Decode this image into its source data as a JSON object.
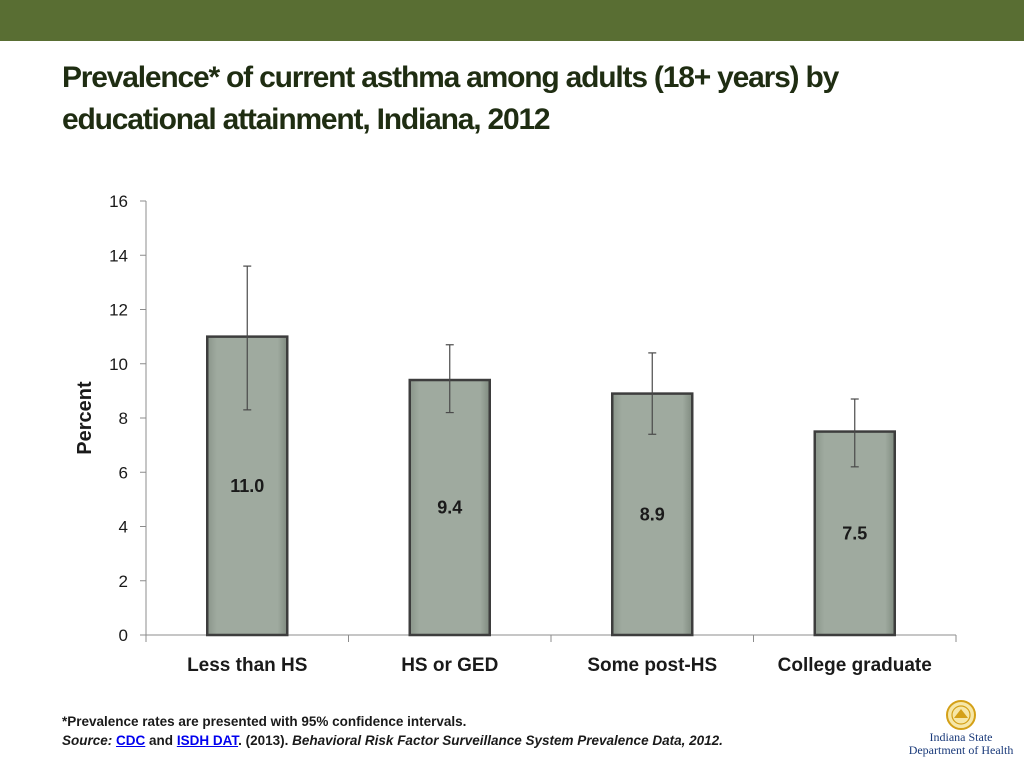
{
  "title": "Prevalence* of current asthma among adults (18+ years) by educational attainment, Indiana, 2012",
  "colors": {
    "top_band": "#596e33",
    "title": "#1f2d12",
    "bar_fill": "#9faa9f",
    "bar_edge": "#3d3d3d",
    "text": "#1a1a1a",
    "axis": "#8c8c8c",
    "logo_seal": "#d4a017",
    "logo_text": "#1a3a7a"
  },
  "chart_data": {
    "type": "bar",
    "categories": [
      "Less than HS",
      "HS or GED",
      "Some post-HS",
      "College graduate"
    ],
    "values": [
      11.0,
      9.4,
      8.9,
      7.5
    ],
    "value_labels": [
      "11.0",
      "9.4",
      "8.9",
      "7.5"
    ],
    "ci_lower": [
      8.3,
      8.2,
      7.4,
      6.2
    ],
    "ci_upper": [
      13.6,
      10.7,
      10.4,
      8.7
    ],
    "ylabel": "Percent",
    "xlabel": "",
    "ylim": [
      0,
      16
    ],
    "yticks": [
      "0",
      "2",
      "4",
      "6",
      "8",
      "10",
      "12",
      "14",
      "16"
    ],
    "grid": false,
    "legend": "none"
  },
  "footnote": {
    "note": "*Prevalence rates are presented with 95% confidence intervals.",
    "source_label": "Source:",
    "link1": "CDC",
    "and": "and",
    "link2": "ISDH DAT",
    "year": ". (2013).",
    "citation": "Behavioral Risk Factor Surveillance System Prevalence Data, 2012."
  },
  "logo": {
    "icon": "indiana-state-seal-icon",
    "line1": "Indiana State",
    "line2": "Department of Health"
  }
}
